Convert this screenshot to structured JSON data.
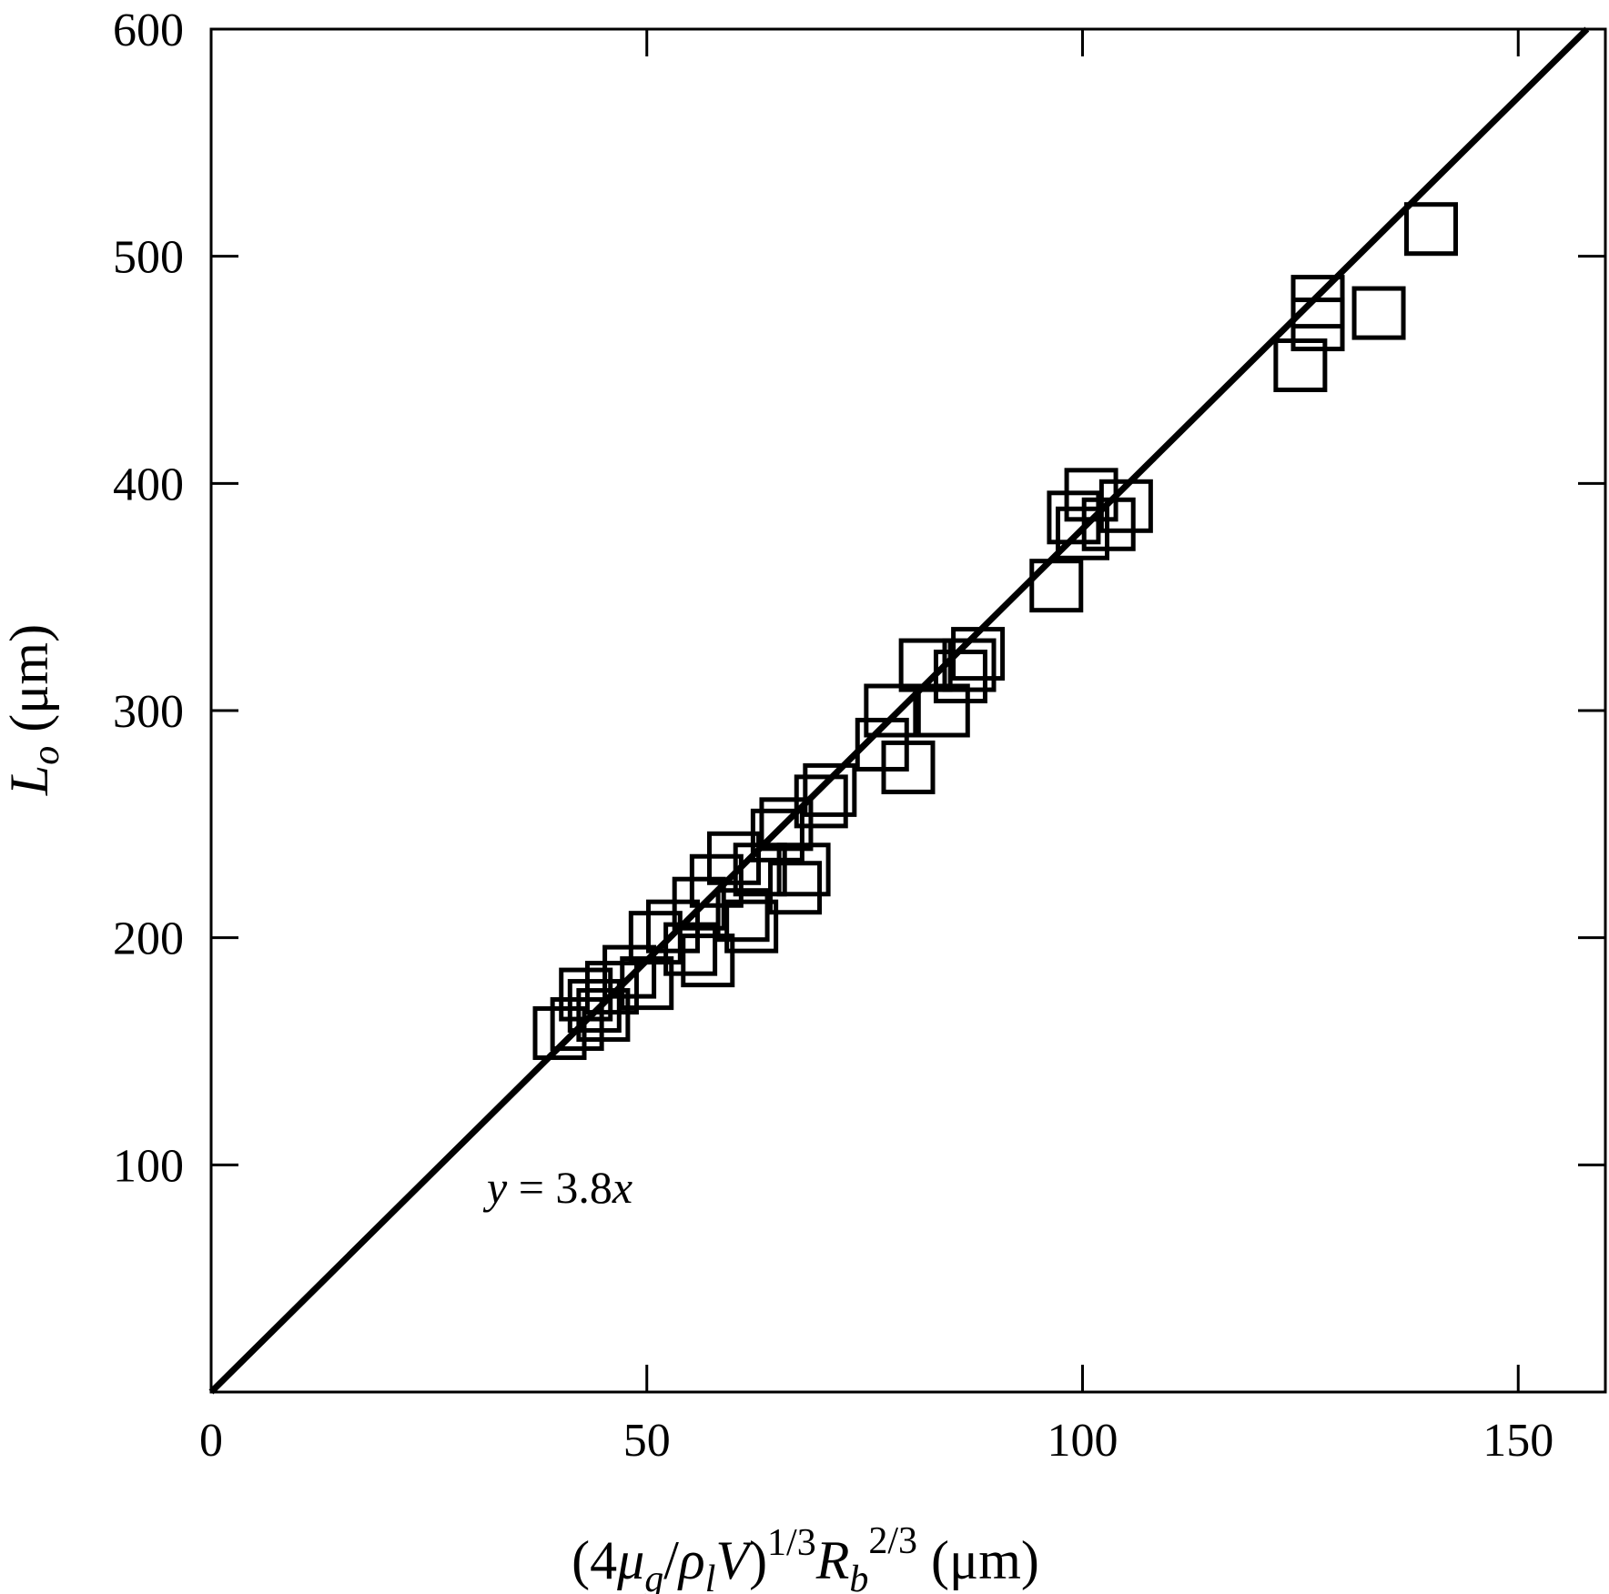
{
  "chart_data": {
    "type": "scatter",
    "xlabel": "(4μg/ρlV)1/3Rb2/3 (μm)",
    "ylabel": "Lo (μm)",
    "xlim": [
      0,
      160
    ],
    "ylim": [
      0,
      600
    ],
    "x_ticks": [
      0,
      50,
      100,
      150
    ],
    "y_ticks": [
      100,
      200,
      300,
      400,
      500,
      600
    ],
    "grid": false,
    "marker": "open-square",
    "series": [
      {
        "x": [
          40,
          42,
          43,
          44,
          45,
          46,
          48,
          50,
          51,
          53,
          55,
          56,
          57,
          58,
          60,
          61,
          62,
          63,
          65,
          66,
          67,
          68,
          70,
          71,
          77,
          78,
          80,
          82,
          84,
          86,
          87,
          88,
          97,
          99,
          100,
          101,
          103,
          105,
          125,
          127,
          127,
          134,
          140
        ],
        "y": [
          158,
          162,
          175,
          170,
          166,
          178,
          185,
          180,
          200,
          205,
          195,
          215,
          190,
          225,
          235,
          210,
          205,
          230,
          245,
          250,
          222,
          230,
          260,
          265,
          285,
          300,
          275,
          320,
          300,
          315,
          320,
          325,
          355,
          385,
          378,
          395,
          382,
          390,
          452,
          480,
          470,
          475,
          512
        ]
      }
    ],
    "fit": {
      "slope": 3.8,
      "label": "y = 3.8x"
    }
  }
}
